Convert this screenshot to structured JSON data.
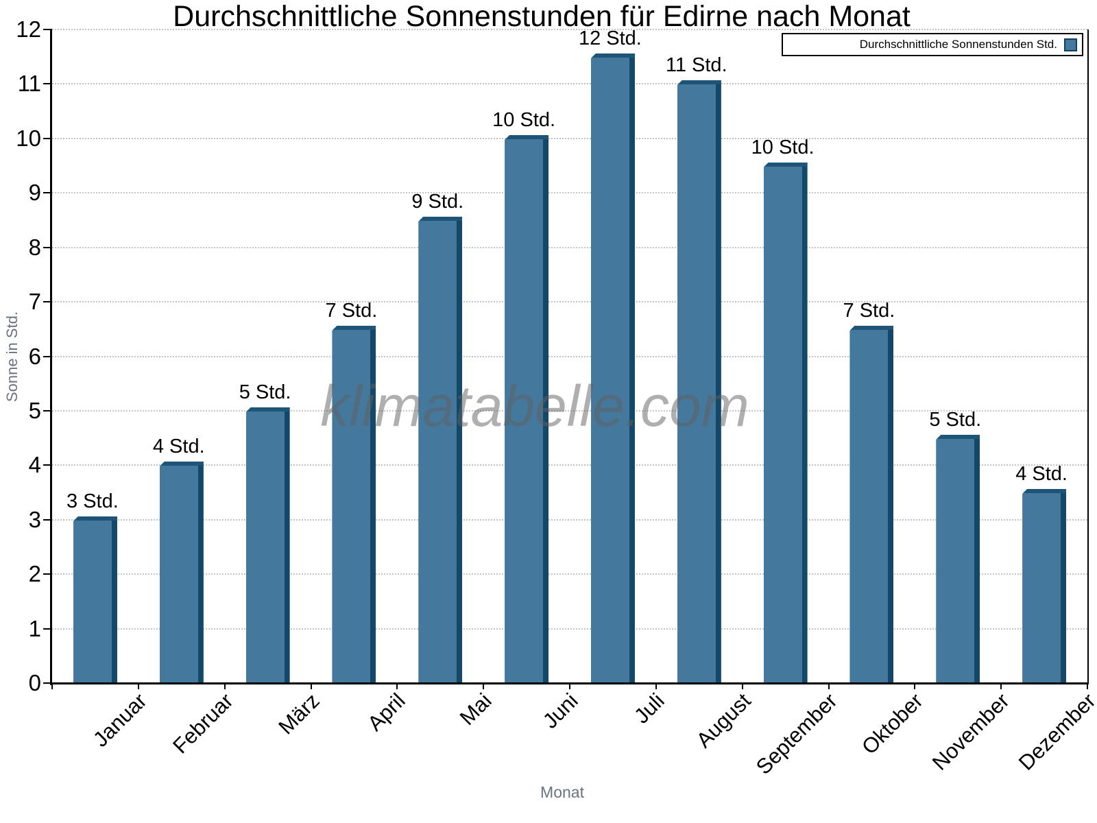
{
  "header": {
    "title": "Durchschnittliche Sonnenstunden für Edirne nach Monat"
  },
  "legend": {
    "label": "Durchschnittliche Sonnenstunden Std.",
    "position": "top-right"
  },
  "watermark": {
    "text": "klimatabelle.com"
  },
  "axes": {
    "x_label": "Monat",
    "y_label": "Sonne in Std."
  },
  "colors": {
    "bar_face": "#44789D",
    "bar_side": "#134868",
    "bar_top": "#1D5478",
    "axis": "#000000",
    "grid": "#c4c4c4",
    "muted_text": "#6a737d",
    "watermark": "#9b9b9b"
  },
  "chart_data": {
    "type": "bar",
    "title": "Durchschnittliche Sonnenstunden für Edirne nach Monat",
    "xlabel": "Monat",
    "ylabel": "Sonne in Std.",
    "categories": [
      "Januar",
      "Februar",
      "März",
      "April",
      "Mai",
      "Juni",
      "Juli",
      "August",
      "September",
      "Oktober",
      "November",
      "Dezember"
    ],
    "values": [
      3,
      4,
      5,
      6.5,
      8.5,
      10,
      11.5,
      11,
      9.5,
      6.5,
      4.5,
      3.5
    ],
    "bar_labels": [
      "3 Std.",
      "4 Std.",
      "5 Std.",
      "7 Std.",
      "9 Std.",
      "10 Std.",
      "12 Std.",
      "11 Std.",
      "10 Std.",
      "7 Std.",
      "5 Std.",
      "4 Std."
    ],
    "series_name": "Durchschnittliche Sonnenstunden Std.",
    "ylim": [
      0,
      12
    ],
    "yticks": [
      0,
      1,
      2,
      3,
      4,
      5,
      6,
      7,
      8,
      9,
      10,
      11,
      12
    ],
    "grid": "horizontal-dotted",
    "legend_position": "top-right"
  }
}
